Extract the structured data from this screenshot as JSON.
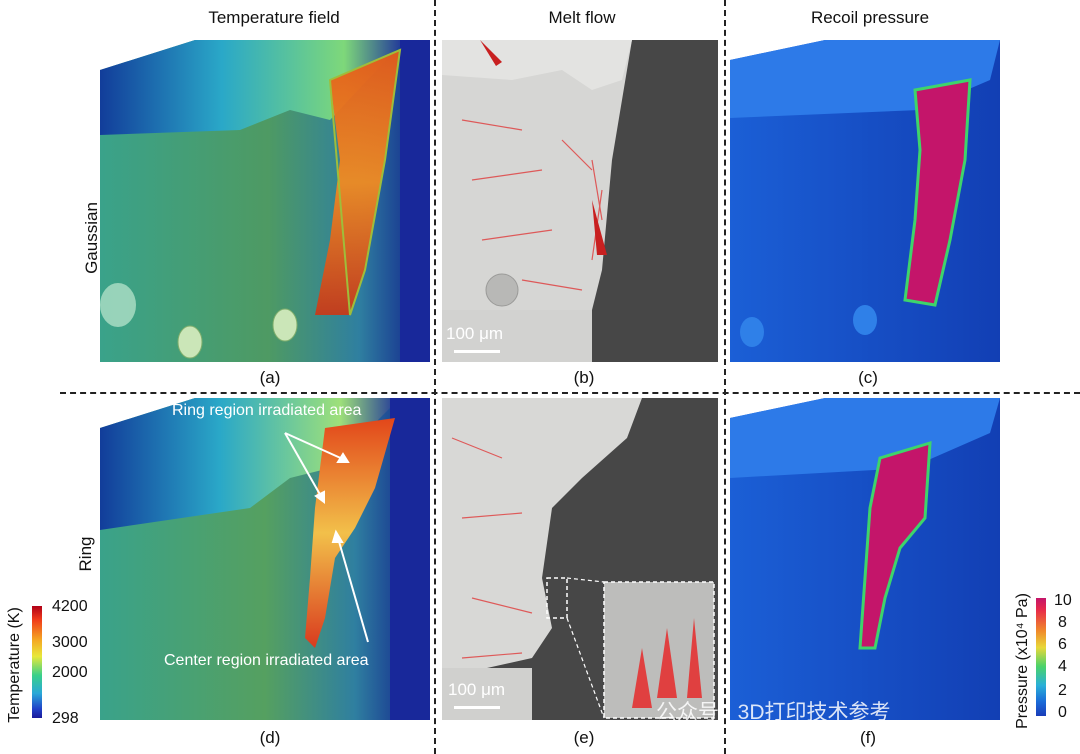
{
  "columns": {
    "temperature": "Temperature field",
    "melt": "Melt flow",
    "recoil": "Recoil pressure"
  },
  "rows": {
    "gaussian": "Gaussian",
    "ring": "Ring"
  },
  "panels": {
    "a": "(a)",
    "b": "(b)",
    "c": "(c)",
    "d": "(d)",
    "e": "(e)",
    "f": "(f)"
  },
  "scale_bar": {
    "b": "100 μm",
    "e": "100 μm"
  },
  "annotations": {
    "ring_region": "Ring region irradiated area",
    "center_region": "Center region irradiated area"
  },
  "temperature_colorbar": {
    "label": "Temperature (K)",
    "ticks": [
      "4200",
      "3000",
      "2000",
      "298"
    ]
  },
  "pressure_colorbar": {
    "label": "Pressure (x10⁴ Pa)",
    "ticks": [
      "10",
      "8",
      "6",
      "4",
      "2",
      "0"
    ]
  },
  "watermark": "公众号 · 3D打印技术参考"
}
